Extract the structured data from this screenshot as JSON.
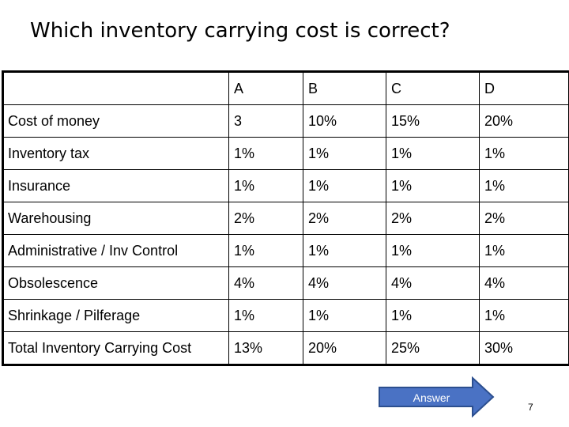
{
  "title": "Which inventory carrying cost is correct?",
  "table": {
    "headers": [
      "",
      "A",
      "B",
      "C",
      "D"
    ],
    "rows": [
      {
        "label": "Cost of money",
        "values": [
          "3",
          "10%",
          "15%",
          "20%"
        ]
      },
      {
        "label": "Inventory tax",
        "values": [
          "1%",
          "1%",
          "1%",
          "1%"
        ]
      },
      {
        "label": "Insurance",
        "values": [
          "1%",
          "1%",
          "1%",
          "1%"
        ]
      },
      {
        "label": "Warehousing",
        "values": [
          "2%",
          "2%",
          "2%",
          "2%"
        ]
      },
      {
        "label": "Administrative / Inv Control",
        "values": [
          "1%",
          "1%",
          "1%",
          "1%"
        ]
      },
      {
        "label": "Obsolescence",
        "values": [
          "4%",
          "4%",
          "4%",
          "4%"
        ]
      },
      {
        "label": "Shrinkage / Pilferage",
        "values": [
          "1%",
          "1%",
          "1%",
          "1%"
        ]
      },
      {
        "label": "Total Inventory Carrying Cost",
        "values": [
          "13%",
          "20%",
          "25%",
          "30%"
        ]
      }
    ]
  },
  "answer_button": {
    "label": "Answer",
    "color": "#4a72c4",
    "border": "#2c4f8f"
  },
  "page_number": "7"
}
